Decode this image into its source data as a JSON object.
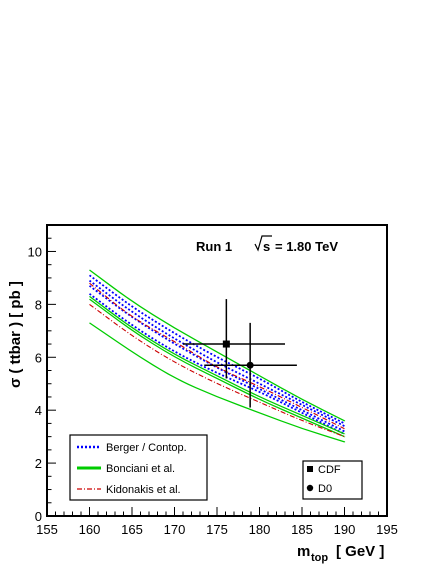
{
  "chart_data": {
    "type": "line",
    "annotation": {
      "run": "Run 1",
      "energy_prefix": "s",
      "energy_value": "= 1.80 TeV"
    },
    "xlabel": {
      "main": "m",
      "sub": "top",
      "unit": "[ GeV ]"
    },
    "ylabel": "σ ( ttbar ) [ pb ]",
    "xlim": [
      155,
      195
    ],
    "ylim": [
      0,
      11
    ],
    "xticks": [
      "155",
      "160",
      "165",
      "170",
      "175",
      "180",
      "185",
      "190",
      "195"
    ],
    "yticks": [
      "0",
      "2",
      "4",
      "6",
      "8",
      "10"
    ],
    "x": [
      160,
      165,
      170,
      175,
      180,
      185,
      190
    ],
    "series": [
      {
        "name": "Berger / Contop.",
        "color": "#0000ff",
        "style": "dotted",
        "bands": [
          [
            9.1,
            7.9,
            6.9,
            6.0,
            5.2,
            4.3,
            3.5
          ],
          [
            8.9,
            7.7,
            6.7,
            5.8,
            5.0,
            4.2,
            3.4
          ],
          [
            8.7,
            7.5,
            6.5,
            5.6,
            4.8,
            4.0,
            3.2
          ],
          [
            8.4,
            7.2,
            6.2,
            5.4,
            4.7,
            3.9,
            3.1
          ]
        ]
      },
      {
        "name": "Bonciani et al.",
        "color": "#00cc00",
        "style": "solid",
        "bands": [
          [
            9.3,
            8.1,
            7.1,
            6.2,
            5.3,
            4.4,
            3.6
          ],
          [
            8.3,
            7.1,
            6.1,
            5.3,
            4.5,
            3.8,
            3.1
          ],
          [
            8.2,
            7.0,
            6.0,
            5.2,
            4.4,
            3.7,
            3.0
          ],
          [
            7.3,
            6.2,
            5.2,
            4.5,
            3.9,
            3.3,
            2.8
          ]
        ]
      },
      {
        "name": "Kidonakis et al.",
        "color": "#cc0000",
        "style": "dashdot",
        "bands": [
          [
            8.8,
            7.5,
            6.6,
            5.6,
            4.9,
            4.1,
            3.3
          ],
          [
            8.0,
            6.8,
            5.8,
            5.0,
            4.3,
            3.6,
            3.0
          ]
        ]
      }
    ],
    "measurements": [
      {
        "name": "CDF",
        "marker": "square",
        "x": 176.1,
        "y": 6.5,
        "x_err": [
          5.1,
          6.9
        ],
        "y_err": [
          1.3,
          1.7
        ]
      },
      {
        "name": "D0",
        "marker": "circle",
        "x": 178.9,
        "y": 5.7,
        "x_err": [
          5.4,
          5.5
        ],
        "y_err": [
          1.6,
          1.6
        ]
      }
    ]
  }
}
